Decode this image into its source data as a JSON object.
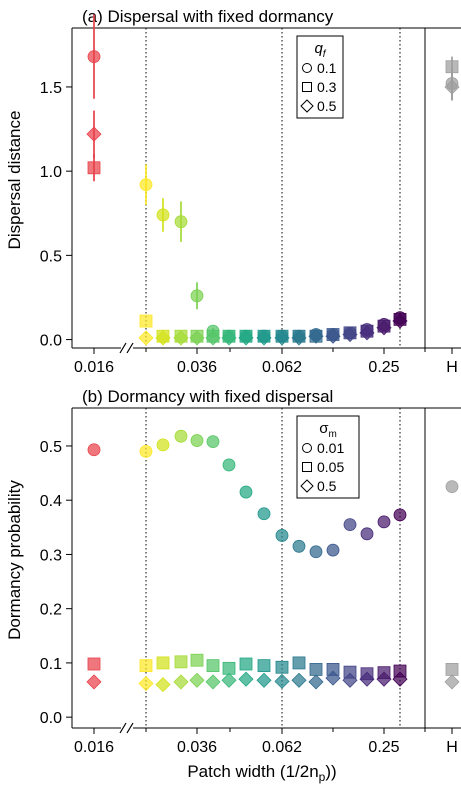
{
  "figure": {
    "xlabel": "Patch width (1/2n",
    "xlabel_sub": "p",
    "xlabel_close": "))"
  },
  "chart_data": [
    {
      "type": "scatter",
      "panel": "top",
      "title": "(a) Dispersal with fixed dormancy",
      "xlabel": "",
      "ylabel": "Dispersal distance",
      "ylim": [
        -0.05,
        1.85
      ],
      "yticks": [
        0.0,
        0.5,
        1.0,
        1.5
      ],
      "xtick_labels": [
        "0.016",
        "0.036",
        "0.062",
        "0.25",
        "H"
      ],
      "axis_break": true,
      "legend": {
        "title": "q",
        "title_sub": "f",
        "position": "top-right",
        "entries": [
          {
            "label": "0.1",
            "marker": "circle"
          },
          {
            "label": "0.3",
            "marker": "square"
          },
          {
            "label": "0.5",
            "marker": "diamond"
          }
        ]
      },
      "series": [
        {
          "name": "0.1",
          "marker": "circle",
          "points": [
            {
              "x": "0.016",
              "y": 1.68,
              "err": 0.25
            },
            {
              "x": "0.025",
              "y": 0.92,
              "err": 0.12
            },
            {
              "x": "0.028",
              "y": 0.74,
              "err": 0.1
            },
            {
              "x": "0.032",
              "y": 0.7,
              "err": 0.12
            },
            {
              "x": "0.036",
              "y": 0.26,
              "err": 0.08
            },
            {
              "x": "0.040",
              "y": 0.05,
              "err": 0.02
            },
            {
              "x": "0.045",
              "y": 0.02
            },
            {
              "x": "0.050",
              "y": 0.02
            },
            {
              "x": "0.056",
              "y": 0.02
            },
            {
              "x": "0.062",
              "y": 0.02
            },
            {
              "x": "0.071",
              "y": 0.02
            },
            {
              "x": "0.083",
              "y": 0.03
            },
            {
              "x": "0.100",
              "y": 0.03
            },
            {
              "x": "0.125",
              "y": 0.04
            },
            {
              "x": "0.167",
              "y": 0.06
            },
            {
              "x": "0.250",
              "y": 0.09
            },
            {
              "x": "0.500",
              "y": 0.13
            },
            {
              "x": "H",
              "y": 1.52,
              "err": 0.1
            }
          ]
        },
        {
          "name": "0.3",
          "marker": "square",
          "points": [
            {
              "x": "0.016",
              "y": 1.02,
              "err": 0.08
            },
            {
              "x": "0.025",
              "y": 0.11
            },
            {
              "x": "0.028",
              "y": 0.02
            },
            {
              "x": "0.032",
              "y": 0.02
            },
            {
              "x": "0.036",
              "y": 0.02
            },
            {
              "x": "0.040",
              "y": 0.02
            },
            {
              "x": "0.045",
              "y": 0.02
            },
            {
              "x": "0.050",
              "y": 0.02
            },
            {
              "x": "0.056",
              "y": 0.02
            },
            {
              "x": "0.062",
              "y": 0.02
            },
            {
              "x": "0.071",
              "y": 0.02
            },
            {
              "x": "0.083",
              "y": 0.02
            },
            {
              "x": "0.100",
              "y": 0.03
            },
            {
              "x": "0.125",
              "y": 0.04
            },
            {
              "x": "0.167",
              "y": 0.05
            },
            {
              "x": "0.250",
              "y": 0.08
            },
            {
              "x": "0.500",
              "y": 0.12
            },
            {
              "x": "H",
              "y": 1.62,
              "err": 0.06
            }
          ]
        },
        {
          "name": "0.5",
          "marker": "diamond",
          "points": [
            {
              "x": "0.016",
              "y": 1.22,
              "err": 0.14
            },
            {
              "x": "0.025",
              "y": 0.01
            },
            {
              "x": "0.028",
              "y": 0.01
            },
            {
              "x": "0.032",
              "y": 0.01
            },
            {
              "x": "0.036",
              "y": 0.01
            },
            {
              "x": "0.040",
              "y": 0.01
            },
            {
              "x": "0.045",
              "y": 0.01
            },
            {
              "x": "0.050",
              "y": 0.01
            },
            {
              "x": "0.056",
              "y": 0.01
            },
            {
              "x": "0.062",
              "y": 0.01
            },
            {
              "x": "0.071",
              "y": 0.01
            },
            {
              "x": "0.083",
              "y": 0.02
            },
            {
              "x": "0.100",
              "y": 0.02
            },
            {
              "x": "0.125",
              "y": 0.03
            },
            {
              "x": "0.167",
              "y": 0.04
            },
            {
              "x": "0.250",
              "y": 0.07
            },
            {
              "x": "0.500",
              "y": 0.11
            },
            {
              "x": "H",
              "y": 1.5,
              "err": 0.08
            }
          ]
        }
      ]
    },
    {
      "type": "scatter",
      "panel": "bottom",
      "title": "(b) Dormancy with fixed dispersal",
      "xlabel": "",
      "ylabel": "Dormancy probability",
      "ylim": [
        -0.02,
        0.57
      ],
      "yticks": [
        0.0,
        0.1,
        0.2,
        0.3,
        0.4,
        0.5
      ],
      "xtick_labels": [
        "0.016",
        "0.036",
        "0.062",
        "0.25",
        "H"
      ],
      "axis_break": true,
      "legend": {
        "title": "σ",
        "title_sub": "m",
        "position": "top-right",
        "entries": [
          {
            "label": "0.01",
            "marker": "circle"
          },
          {
            "label": "0.05",
            "marker": "square"
          },
          {
            "label": "0.5",
            "marker": "diamond"
          }
        ]
      },
      "series": [
        {
          "name": "0.01",
          "marker": "circle",
          "points": [
            {
              "x": "0.016",
              "y": 0.493
            },
            {
              "x": "0.025",
              "y": 0.49
            },
            {
              "x": "0.028",
              "y": 0.502
            },
            {
              "x": "0.032",
              "y": 0.518
            },
            {
              "x": "0.036",
              "y": 0.51
            },
            {
              "x": "0.040",
              "y": 0.508
            },
            {
              "x": "0.045",
              "y": 0.465
            },
            {
              "x": "0.050",
              "y": 0.415
            },
            {
              "x": "0.056",
              "y": 0.375
            },
            {
              "x": "0.062",
              "y": 0.335
            },
            {
              "x": "0.071",
              "y": 0.315
            },
            {
              "x": "0.083",
              "y": 0.305
            },
            {
              "x": "0.100",
              "y": 0.308
            },
            {
              "x": "0.125",
              "y": 0.355
            },
            {
              "x": "0.167",
              "y": 0.338
            },
            {
              "x": "0.250",
              "y": 0.36
            },
            {
              "x": "0.500",
              "y": 0.373
            },
            {
              "x": "H",
              "y": 0.425
            }
          ]
        },
        {
          "name": "0.05",
          "marker": "square",
          "points": [
            {
              "x": "0.016",
              "y": 0.098
            },
            {
              "x": "0.025",
              "y": 0.095
            },
            {
              "x": "0.028",
              "y": 0.1
            },
            {
              "x": "0.032",
              "y": 0.102
            },
            {
              "x": "0.036",
              "y": 0.105
            },
            {
              "x": "0.040",
              "y": 0.095
            },
            {
              "x": "0.045",
              "y": 0.09
            },
            {
              "x": "0.050",
              "y": 0.098
            },
            {
              "x": "0.056",
              "y": 0.095
            },
            {
              "x": "0.062",
              "y": 0.092
            },
            {
              "x": "0.071",
              "y": 0.1
            },
            {
              "x": "0.083",
              "y": 0.088
            },
            {
              "x": "0.100",
              "y": 0.088
            },
            {
              "x": "0.125",
              "y": 0.083
            },
            {
              "x": "0.167",
              "y": 0.08
            },
            {
              "x": "0.250",
              "y": 0.082
            },
            {
              "x": "0.500",
              "y": 0.085
            },
            {
              "x": "H",
              "y": 0.088
            }
          ]
        },
        {
          "name": "0.5",
          "marker": "diamond",
          "points": [
            {
              "x": "0.016",
              "y": 0.065
            },
            {
              "x": "0.025",
              "y": 0.062
            },
            {
              "x": "0.028",
              "y": 0.06
            },
            {
              "x": "0.032",
              "y": 0.065
            },
            {
              "x": "0.036",
              "y": 0.068
            },
            {
              "x": "0.040",
              "y": 0.065
            },
            {
              "x": "0.045",
              "y": 0.068
            },
            {
              "x": "0.050",
              "y": 0.07
            },
            {
              "x": "0.056",
              "y": 0.068
            },
            {
              "x": "0.062",
              "y": 0.066
            },
            {
              "x": "0.071",
              "y": 0.068
            },
            {
              "x": "0.083",
              "y": 0.065
            },
            {
              "x": "0.100",
              "y": 0.072
            },
            {
              "x": "0.125",
              "y": 0.068
            },
            {
              "x": "0.167",
              "y": 0.07
            },
            {
              "x": "0.250",
              "y": 0.07
            },
            {
              "x": "0.500",
              "y": 0.07
            },
            {
              "x": "H",
              "y": 0.065
            }
          ]
        }
      ]
    }
  ]
}
